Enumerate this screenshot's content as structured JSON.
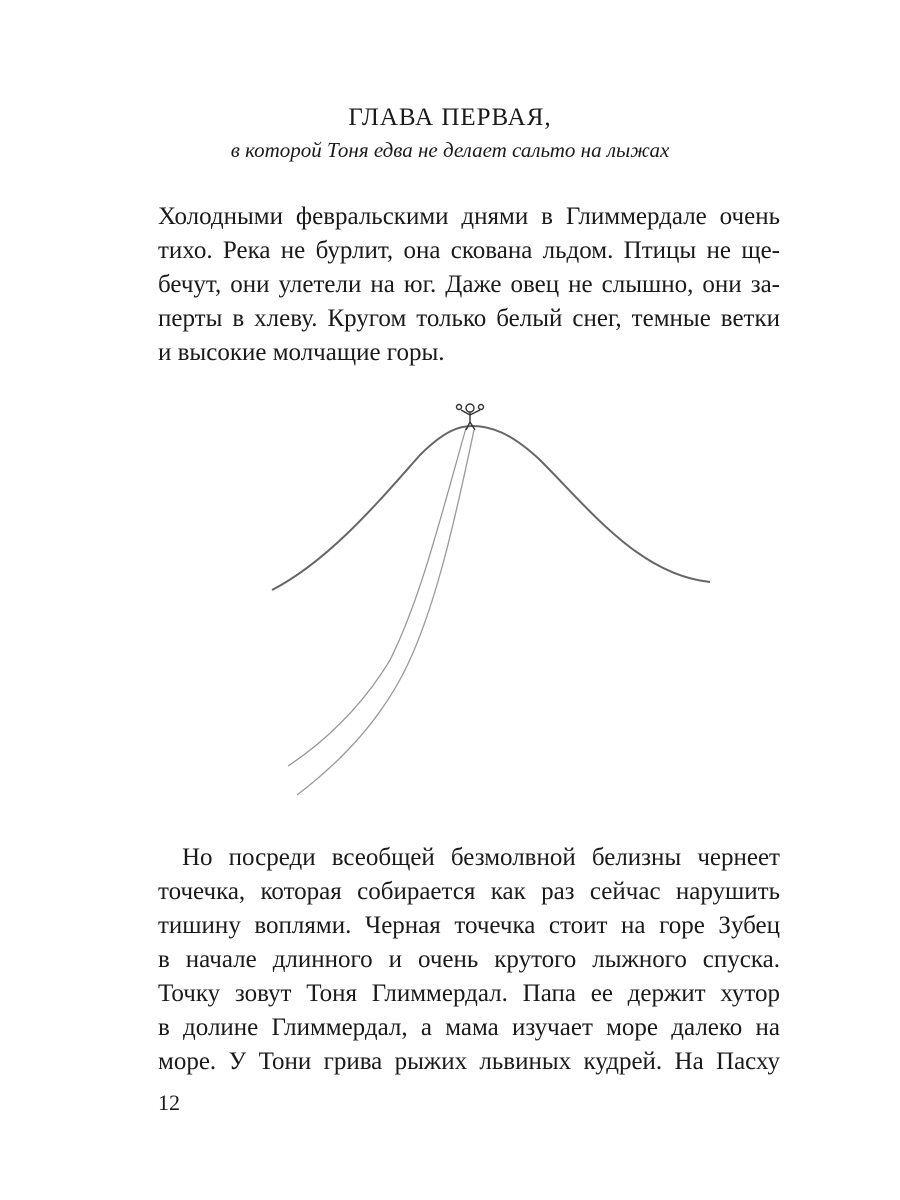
{
  "chapter": {
    "title": "ГЛАВА ПЕРВАЯ,",
    "subtitle": "в которой Тоня едва не делает сальто на лыжах"
  },
  "paragraphs": [
    {
      "lines": [
        "Холодными февральскими днями в Глиммердале очень",
        "тихо. Река не бурлит, она скована льдом. Птицы не ще-",
        "бечут, они улетели на юг. Даже овец не слышно, они за-",
        "перты в хлеву. Кругом только белый снег, темные ветки",
        "и высокие молчащие горы."
      ]
    },
    {
      "lines": [
        "Но посреди всеобщей безмолвной белизны чернеет",
        "точечка, которая собирается как раз сейчас нарушить",
        "тишину воплями. Черная точечка стоит на горе Зубец",
        "в начале длинного и очень крутого лыжного спуска.",
        "Точку зовут Тоня Глиммердал. Папа ее держит хутор",
        "в долине Глиммердал, а мама изучает море далеко на",
        "море. У Тони грива рыжих львиных кудрей. На Пасху"
      ]
    }
  ],
  "page_number": "12"
}
